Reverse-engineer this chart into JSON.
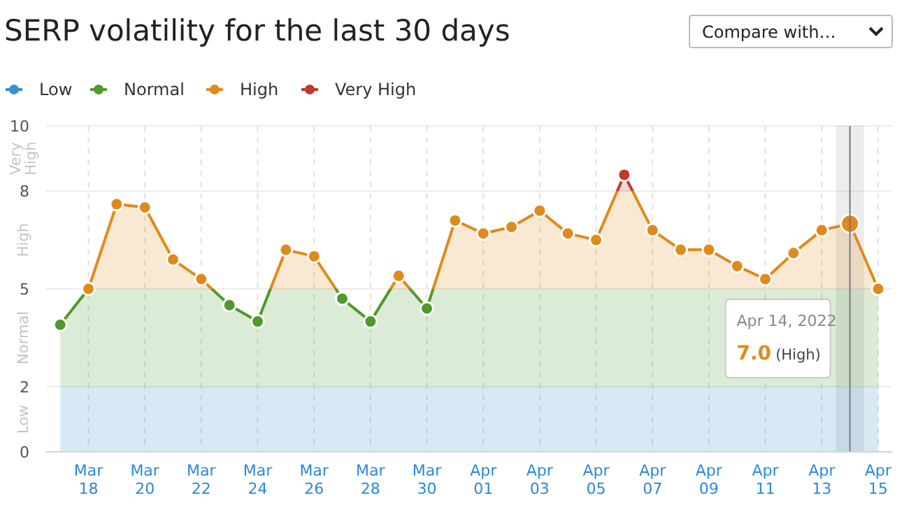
{
  "chart_data": {
    "type": "line",
    "title": "SERP volatility for the last 30 days",
    "x": [
      "2022-03-17",
      "2022-03-18",
      "2022-03-19",
      "2022-03-20",
      "2022-03-21",
      "2022-03-22",
      "2022-03-23",
      "2022-03-24",
      "2022-03-25",
      "2022-03-26",
      "2022-03-27",
      "2022-03-28",
      "2022-03-29",
      "2022-03-30",
      "2022-03-31",
      "2022-04-01",
      "2022-04-02",
      "2022-04-03",
      "2022-04-04",
      "2022-04-05",
      "2022-04-06",
      "2022-04-07",
      "2022-04-08",
      "2022-04-09",
      "2022-04-10",
      "2022-04-11",
      "2022-04-12",
      "2022-04-13",
      "2022-04-14",
      "2022-04-15"
    ],
    "series": [
      {
        "values": [
          3.9,
          5.0,
          7.6,
          7.5,
          5.9,
          5.3,
          4.5,
          4.0,
          6.2,
          6.0,
          4.7,
          4.0,
          5.4,
          4.4,
          7.1,
          6.7,
          6.9,
          7.4,
          6.7,
          6.5,
          8.5,
          6.8,
          6.2,
          6.2,
          5.7,
          5.3,
          6.1,
          6.8,
          7.0,
          5.0
        ]
      }
    ],
    "xlim": [
      "2022-03-16T12:00",
      "2022-04-15T12:00"
    ],
    "xticks": [
      {
        "value": "2022-03-18",
        "label": "Mar\n18"
      },
      {
        "value": "2022-03-20",
        "label": "Mar\n20"
      },
      {
        "value": "2022-03-22",
        "label": "Mar\n22"
      },
      {
        "value": "2022-03-24",
        "label": "Mar\n24"
      },
      {
        "value": "2022-03-26",
        "label": "Mar\n26"
      },
      {
        "value": "2022-03-28",
        "label": "Mar\n28"
      },
      {
        "value": "2022-03-30",
        "label": "Mar\n30"
      },
      {
        "value": "2022-04-01",
        "label": "Apr\n01"
      },
      {
        "value": "2022-04-03",
        "label": "Apr\n03"
      },
      {
        "value": "2022-04-05",
        "label": "Apr\n05"
      },
      {
        "value": "2022-04-07",
        "label": "Apr\n07"
      },
      {
        "value": "2022-04-09",
        "label": "Apr\n09"
      },
      {
        "value": "2022-04-11",
        "label": "Apr\n11"
      },
      {
        "value": "2022-04-13",
        "label": "Apr\n13"
      },
      {
        "value": "2022-04-15",
        "label": "Apr\n15"
      }
    ],
    "ylim": [
      0,
      10
    ],
    "yticks": [
      0,
      2,
      5,
      8,
      10
    ],
    "bands": [
      {
        "axis": "y",
        "from": 0,
        "to": 2,
        "label": "Low",
        "color": "#3b8fd4"
      },
      {
        "axis": "y",
        "from": 2,
        "to": 5,
        "label": "Normal",
        "color": "#4e9a2c"
      },
      {
        "axis": "y",
        "from": 5,
        "to": 8,
        "label": "High",
        "color": "#e08a1c"
      },
      {
        "axis": "y",
        "from": 8,
        "to": 10,
        "label": "Very High",
        "color": "#c0392b"
      },
      {
        "axis": "x",
        "from": "2022-04-13T12:00",
        "to": "2022-04-14T12:00",
        "color": "#9e9e9e"
      }
    ],
    "ref_lines": [
      {
        "axis": "x",
        "value": "2022-04-14",
        "color": "#7a7a7a"
      }
    ],
    "annotations": [
      "Apr 14, 2022\n7.0 (High)",
      "Compare with…"
    ],
    "grid": true,
    "legend": "top left",
    "marker": "circle",
    "line_style": "solid"
  }
}
